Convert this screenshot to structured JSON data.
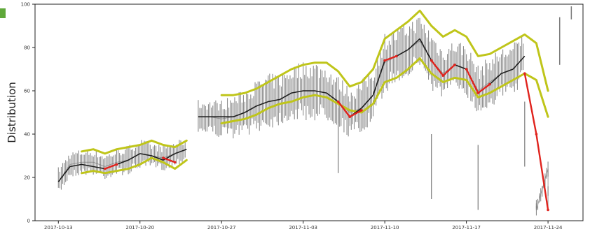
{
  "colors": {
    "raw": "#7a7a7a",
    "mean": "#1e1e1e",
    "band": "#bfc51a",
    "anomaly": "#e0231d",
    "frame": "#222222",
    "corner_mark": "#5fa83a"
  },
  "chart_data": {
    "type": "line",
    "title": "",
    "xlabel": "",
    "ylabel": "Distribution",
    "ylim": [
      0,
      100
    ],
    "xlim": [
      "2017-10-11",
      "2017-11-27"
    ],
    "grid": false,
    "legend": "none",
    "xticks": [
      "2017-10-13",
      "2017-10-20",
      "2017-10-27",
      "2017-11-03",
      "2017-11-10",
      "2017-11-17",
      "2017-11-24"
    ],
    "yticks": [
      0,
      20,
      40,
      60,
      80,
      100
    ],
    "series": [
      {
        "role": "raw",
        "segments": [
          {
            "x": [
              "2017-10-13",
              "2017-10-14",
              "2017-10-15",
              "2017-10-16",
              "2017-10-17",
              "2017-10-18",
              "2017-10-19",
              "2017-10-20",
              "2017-10-21",
              "2017-10-22",
              "2017-10-23",
              "2017-10-24"
            ],
            "y": [
              18,
              26,
              27,
              27,
              25,
              27,
              28,
              31,
              30,
              29,
              31,
              33
            ],
            "spread": [
              7,
              6,
              6,
              6,
              6,
              6,
              7,
              7,
              6,
              6,
              6,
              5
            ]
          },
          {
            "x": [
              "2017-10-25",
              "2017-10-26",
              "2017-10-27",
              "2017-10-28",
              "2017-10-29",
              "2017-10-30",
              "2017-10-31",
              "2017-11-01",
              "2017-11-02",
              "2017-11-03",
              "2017-11-04",
              "2017-11-05",
              "2017-11-06",
              "2017-11-07",
              "2017-11-08",
              "2017-11-09",
              "2017-11-10",
              "2017-11-11",
              "2017-11-12",
              "2017-11-13",
              "2017-11-14",
              "2017-11-15",
              "2017-11-16",
              "2017-11-17",
              "2017-11-18",
              "2017-11-19",
              "2017-11-20",
              "2017-11-21",
              "2017-11-22"
            ],
            "y": [
              48,
              48,
              47,
              48,
              50,
              53,
              55,
              56,
              59,
              60,
              60,
              59,
              55,
              50,
              52,
              58,
              73,
              76,
              79,
              83,
              74,
              68,
              72,
              70,
              60,
              64,
              68,
              70,
              76
            ],
            "spread": [
              8,
              8,
              9,
              10,
              11,
              12,
              13,
              12,
              13,
              14,
              14,
              13,
              12,
              12,
              13,
              14,
              14,
              13,
              13,
              12,
              14,
              12,
              12,
              12,
              12,
              12,
              12,
              12,
              12
            ]
          },
          {
            "x": [
              "2017-11-23",
              "2017-11-23",
              "2017-11-24",
              "2017-11-24"
            ],
            "y": [
              8,
              5,
              24,
              5
            ],
            "spread": [
              3,
              3,
              4,
              3
            ]
          }
        ],
        "spikes": [
          {
            "x": "2017-11-06",
            "y": 22
          },
          {
            "x": "2017-11-14",
            "y": 10
          },
          {
            "x": "2017-11-18",
            "y": 5
          },
          {
            "x": "2017-11-22",
            "y": 25
          }
        ],
        "stray": [
          {
            "x": "2017-11-25",
            "low": 72,
            "high": 94
          },
          {
            "x": "2017-11-26",
            "low": 93,
            "high": 99
          }
        ]
      },
      {
        "role": "mean",
        "segments": [
          {
            "x": [
              "2017-10-13",
              "2017-10-14",
              "2017-10-15",
              "2017-10-16",
              "2017-10-17",
              "2017-10-18",
              "2017-10-19",
              "2017-10-20",
              "2017-10-21",
              "2017-10-22",
              "2017-10-23",
              "2017-10-24"
            ],
            "y": [
              18,
              25,
              26,
              25,
              24,
              26,
              28,
              31,
              30,
              28,
              31,
              33
            ]
          },
          {
            "x": [
              "2017-10-25",
              "2017-10-26",
              "2017-10-27",
              "2017-10-28",
              "2017-10-29",
              "2017-10-30",
              "2017-10-31",
              "2017-11-01",
              "2017-11-02",
              "2017-11-03",
              "2017-11-04",
              "2017-11-05",
              "2017-11-06",
              "2017-11-07",
              "2017-11-08",
              "2017-11-09",
              "2017-11-10",
              "2017-11-11",
              "2017-11-12",
              "2017-11-13",
              "2017-11-14",
              "2017-11-15",
              "2017-11-16",
              "2017-11-17",
              "2017-11-18",
              "2017-11-19",
              "2017-11-20",
              "2017-11-21",
              "2017-11-22"
            ],
            "y": [
              48,
              48,
              48,
              48,
              50,
              53,
              55,
              56,
              59,
              60,
              60,
              59,
              55,
              48,
              52,
              58,
              74,
              76,
              79,
              84,
              74,
              67,
              72,
              70,
              59,
              63,
              68,
              70,
              76
            ]
          }
        ]
      },
      {
        "role": "band_upper",
        "segments": [
          {
            "x": [
              "2017-10-15",
              "2017-10-16",
              "2017-10-17",
              "2017-10-18",
              "2017-10-19",
              "2017-10-20",
              "2017-10-21",
              "2017-10-22",
              "2017-10-23",
              "2017-10-24"
            ],
            "y": [
              32,
              33,
              31,
              33,
              34,
              35,
              37,
              35,
              34,
              37
            ]
          },
          {
            "x": [
              "2017-10-27",
              "2017-10-28",
              "2017-10-29",
              "2017-10-30",
              "2017-10-31",
              "2017-11-01",
              "2017-11-02",
              "2017-11-03",
              "2017-11-04",
              "2017-11-05",
              "2017-11-06",
              "2017-11-07",
              "2017-11-08",
              "2017-11-09",
              "2017-11-10",
              "2017-11-11",
              "2017-11-12",
              "2017-11-13",
              "2017-11-14",
              "2017-11-15",
              "2017-11-16",
              "2017-11-17",
              "2017-11-18",
              "2017-11-19",
              "2017-11-20",
              "2017-11-21",
              "2017-11-22",
              "2017-11-23",
              "2017-11-24"
            ],
            "y": [
              58,
              58,
              59,
              61,
              64,
              67,
              70,
              72,
              73,
              73,
              69,
              62,
              64,
              70,
              84,
              88,
              92,
              97,
              90,
              85,
              88,
              85,
              76,
              77,
              80,
              83,
              86,
              82,
              60
            ]
          }
        ]
      },
      {
        "role": "band_lower",
        "segments": [
          {
            "x": [
              "2017-10-15",
              "2017-10-16",
              "2017-10-17",
              "2017-10-18",
              "2017-10-19",
              "2017-10-20",
              "2017-10-21",
              "2017-10-22",
              "2017-10-23",
              "2017-10-24"
            ],
            "y": [
              22,
              23,
              22,
              23,
              24,
              26,
              29,
              27,
              24,
              28
            ]
          },
          {
            "x": [
              "2017-10-27",
              "2017-10-28",
              "2017-10-29",
              "2017-10-30",
              "2017-10-31",
              "2017-11-01",
              "2017-11-02",
              "2017-11-03",
              "2017-11-04",
              "2017-11-05",
              "2017-11-06",
              "2017-11-07",
              "2017-11-08",
              "2017-11-09",
              "2017-11-10",
              "2017-11-11",
              "2017-11-12",
              "2017-11-13",
              "2017-11-14",
              "2017-11-15",
              "2017-11-16",
              "2017-11-17",
              "2017-11-18",
              "2017-11-19",
              "2017-11-20",
              "2017-11-21",
              "2017-11-22",
              "2017-11-23",
              "2017-11-24"
            ],
            "y": [
              45,
              46,
              47,
              49,
              52,
              54,
              55,
              57,
              58,
              57,
              54,
              51,
              50,
              54,
              64,
              66,
              70,
              75,
              68,
              64,
              66,
              65,
              57,
              59,
              62,
              65,
              68,
              65,
              48
            ]
          }
        ]
      },
      {
        "role": "anomaly",
        "segments": [
          {
            "x": [
              "2017-10-17",
              "2017-10-18"
            ],
            "y": [
              24,
              26
            ]
          },
          {
            "x": [
              "2017-10-22",
              "2017-10-23"
            ],
            "y": [
              29,
              27
            ]
          },
          {
            "x": [
              "2017-11-06",
              "2017-11-07",
              "2017-11-08"
            ],
            "y": [
              55,
              48,
              51
            ]
          },
          {
            "x": [
              "2017-11-10",
              "2017-11-11"
            ],
            "y": [
              74,
              76
            ]
          },
          {
            "x": [
              "2017-11-14",
              "2017-11-15",
              "2017-11-16"
            ],
            "y": [
              74,
              67,
              72
            ]
          },
          {
            "x": [
              "2017-11-17",
              "2017-11-18",
              "2017-11-19"
            ],
            "y": [
              70,
              59,
              63
            ]
          },
          {
            "x": [
              "2017-11-22",
              "2017-11-23",
              "2017-11-24"
            ],
            "y": [
              68,
              40,
              5
            ]
          }
        ]
      }
    ]
  }
}
